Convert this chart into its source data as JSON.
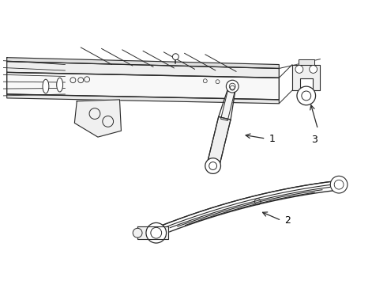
{
  "background_color": "#ffffff",
  "line_color": "#2a2a2a",
  "label_color": "#000000"
}
